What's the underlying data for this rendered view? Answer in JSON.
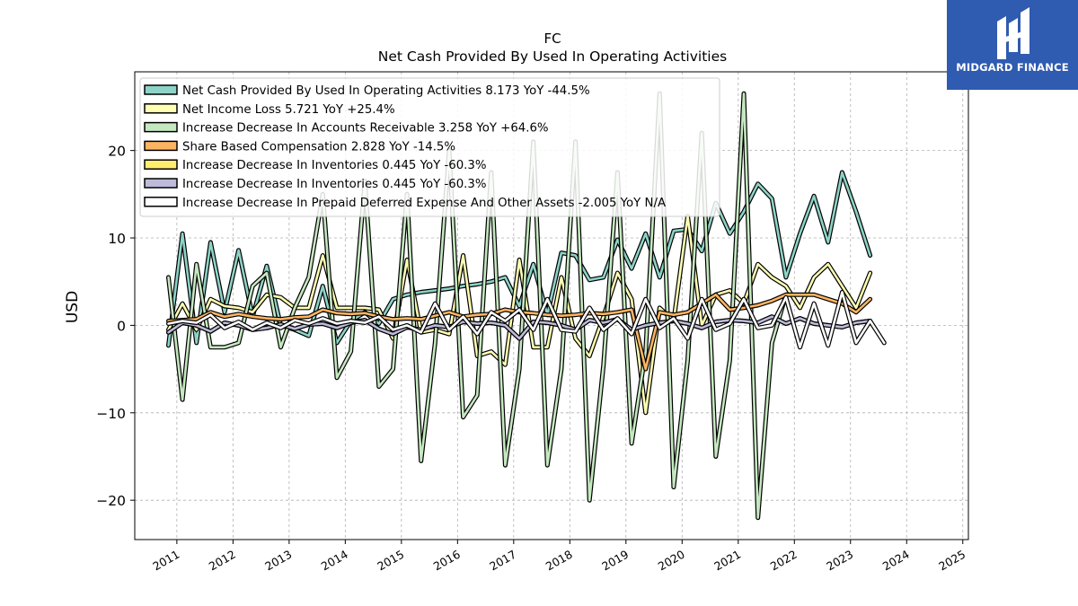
{
  "branding": {
    "logo_text": "MIDGARD FINANCE"
  },
  "chart_data": {
    "type": "line",
    "title": "FC",
    "subtitle": "Net Cash Provided By Used In Operating Activities",
    "ylabel": "USD",
    "xlabel": "",
    "ylim": [
      -24.5,
      29.0
    ],
    "xlim": [
      2010.25,
      2025.1
    ],
    "yticks": [
      -20,
      -10,
      0,
      10,
      20
    ],
    "xticks": [
      2011,
      2012,
      2013,
      2014,
      2015,
      2016,
      2017,
      2018,
      2019,
      2020,
      2021,
      2022,
      2023,
      2024,
      2025
    ],
    "grid": true,
    "legend_position": "top-left",
    "x_start": 2010.85,
    "x_step": 0.25,
    "series": [
      {
        "name": "Net Cash Provided By Used In Operating Activities",
        "legend": "Net Cash Provided By Used In Operating Activities  8.173 YoY -44.5%",
        "color": "#8dd3c7",
        "values": [
          -2.3,
          10.5,
          -2.0,
          9.5,
          1.5,
          8.6,
          1.0,
          6.8,
          0.0,
          -0.5,
          -1.2,
          4.5,
          -2.0,
          0.5,
          1.5,
          0.2,
          3.0,
          3.5,
          3.8,
          4.0,
          4.2,
          4.5,
          4.7,
          5.0,
          5.5,
          2.2,
          7.0,
          1.2,
          8.3,
          8.0,
          5.2,
          5.5,
          9.8,
          6.5,
          10.5,
          5.5,
          10.8,
          11.0,
          8.5,
          14.0,
          10.5,
          13.0,
          16.2,
          14.5,
          5.5,
          10.5,
          14.8,
          9.5,
          17.5,
          13.0,
          8.0
        ]
      },
      {
        "name": "Net Income Loss",
        "legend": "Net Income Loss  5.721 YoY +25.4%",
        "color": "#ffffb3",
        "values": [
          -0.5,
          2.5,
          -0.5,
          3.0,
          2.2,
          2.0,
          1.5,
          3.5,
          3.2,
          2.0,
          2.0,
          8.0,
          2.0,
          2.0,
          2.0,
          1.8,
          -1.5,
          7.5,
          -0.8,
          -0.5,
          -1.0,
          8.0,
          -3.5,
          -3.0,
          -4.5,
          7.5,
          -2.5,
          -2.5,
          5.5,
          -1.5,
          -3.5,
          1.0,
          6.0,
          3.0,
          -10.0,
          2.0,
          0.5,
          12.5,
          0.0,
          3.5,
          4.0,
          2.5,
          7.0,
          5.5,
          4.5,
          2.0,
          5.5,
          7.0,
          4.5,
          2.0,
          6.0
        ]
      },
      {
        "name": "Increase Decrease In Accounts Receivable",
        "legend": "Increase Decrease In Accounts Receivable  3.258 YoY +64.6%",
        "color": "#c5e8c0",
        "values": [
          5.5,
          -8.5,
          7.0,
          -2.5,
          -2.5,
          -2.0,
          4.5,
          6.0,
          -2.5,
          2.0,
          5.5,
          15.0,
          -6.0,
          -3.0,
          16.5,
          -7.0,
          -5.0,
          15.0,
          -15.5,
          -2.0,
          20.0,
          -10.5,
          -8.0,
          17.5,
          -16.0,
          -5.0,
          21.0,
          -16.0,
          -5.0,
          21.0,
          -20.0,
          -4.5,
          17.5,
          -13.5,
          -3.0,
          26.5,
          -18.5,
          -4.0,
          22.0,
          -15.0,
          -4.0,
          26.5,
          -22.0,
          -2.0,
          3.5
        ]
      },
      {
        "name": "Share Based Compensation",
        "legend": "Share Based Compensation  2.828 YoY -14.5%",
        "color": "#fdb462",
        "values": [
          0.5,
          0.6,
          0.7,
          1.5,
          1.0,
          1.3,
          1.0,
          0.8,
          0.7,
          0.9,
          1.0,
          1.8,
          1.4,
          1.3,
          1.4,
          1.0,
          0.7,
          0.8,
          0.7,
          1.1,
          1.5,
          1.0,
          1.2,
          1.3,
          1.8,
          1.5,
          1.4,
          1.2,
          1.1,
          1.2,
          1.4,
          1.3,
          1.5,
          1.8,
          -5.0,
          1.5,
          1.2,
          1.5,
          2.5,
          3.5,
          1.8,
          2.0,
          2.3,
          2.8,
          3.5,
          3.5,
          3.5,
          3.0,
          2.5,
          1.5,
          3.0
        ]
      },
      {
        "name": "Increase Decrease In Inventories",
        "legend": "Increase Decrease In Inventories  0.445 YoY -60.3%",
        "color": "#ffed6f",
        "values": [
          -0.8,
          0.3,
          0.0,
          -0.7,
          0.3,
          0.0,
          -0.5,
          -0.3,
          0.1,
          -0.4,
          0.1,
          0.2,
          -0.3,
          0.3,
          0.6,
          -0.4,
          -1.0,
          -0.2,
          -0.5,
          0.0,
          -0.2,
          0.4,
          0.2,
          0.3,
          0.0,
          -1.5,
          0.4,
          0.3,
          0.0,
          -0.5,
          0.6,
          0.3,
          0.7,
          -0.5,
          0.0,
          0.3,
          0.5,
          0.2,
          -0.3,
          0.4,
          0.6,
          0.5,
          0.3,
          1.0,
          0.2,
          0.8,
          0.2,
          0.0,
          -0.2,
          0.3,
          0.5
        ]
      },
      {
        "name": "Increase Decrease In Inventories",
        "legend": "Increase Decrease In Inventories  0.445 YoY -60.3%",
        "color": "#bebada",
        "values": [
          -0.8,
          0.3,
          0.0,
          -0.7,
          0.3,
          0.0,
          -0.5,
          -0.3,
          0.1,
          -0.4,
          0.1,
          0.2,
          -0.3,
          0.3,
          0.6,
          -0.4,
          -1.0,
          -0.2,
          -0.5,
          0.0,
          -0.2,
          0.4,
          0.2,
          0.3,
          0.0,
          -1.5,
          0.4,
          0.3,
          0.0,
          -0.5,
          0.6,
          0.3,
          0.7,
          -0.5,
          0.0,
          0.3,
          0.5,
          0.2,
          -0.3,
          0.4,
          0.6,
          0.5,
          0.3,
          1.0,
          0.2,
          0.8,
          0.2,
          0.0,
          -0.2,
          0.3,
          0.5
        ]
      },
      {
        "name": "Increase Decrease In Prepaid Deferred Expense And Other Assets",
        "legend": "Increase Decrease In Prepaid Deferred Expense And Other Assets  -2.005 YoY N/A",
        "color": "#ffffff",
        "values": [
          0.2,
          0.5,
          0.3,
          1.2,
          -0.3,
          0.4,
          -0.5,
          0.3,
          -0.3,
          0.6,
          0.2,
          0.8,
          0.2,
          0.5,
          0.3,
          1.0,
          -0.5,
          0.0,
          -0.8,
          2.5,
          -0.5,
          1.0,
          -1.0,
          1.5,
          0.5,
          1.8,
          -0.5,
          3.0,
          -0.5,
          -0.7,
          2.0,
          -0.5,
          0.8,
          -1.0,
          3.0,
          -0.3,
          0.8,
          -1.5,
          3.0,
          -0.5,
          0.2,
          3.0,
          -0.3,
          0.0,
          3.2,
          -2.5,
          2.5,
          -2.3,
          3.8,
          -2.0,
          0.5,
          -2.0
        ]
      }
    ]
  }
}
